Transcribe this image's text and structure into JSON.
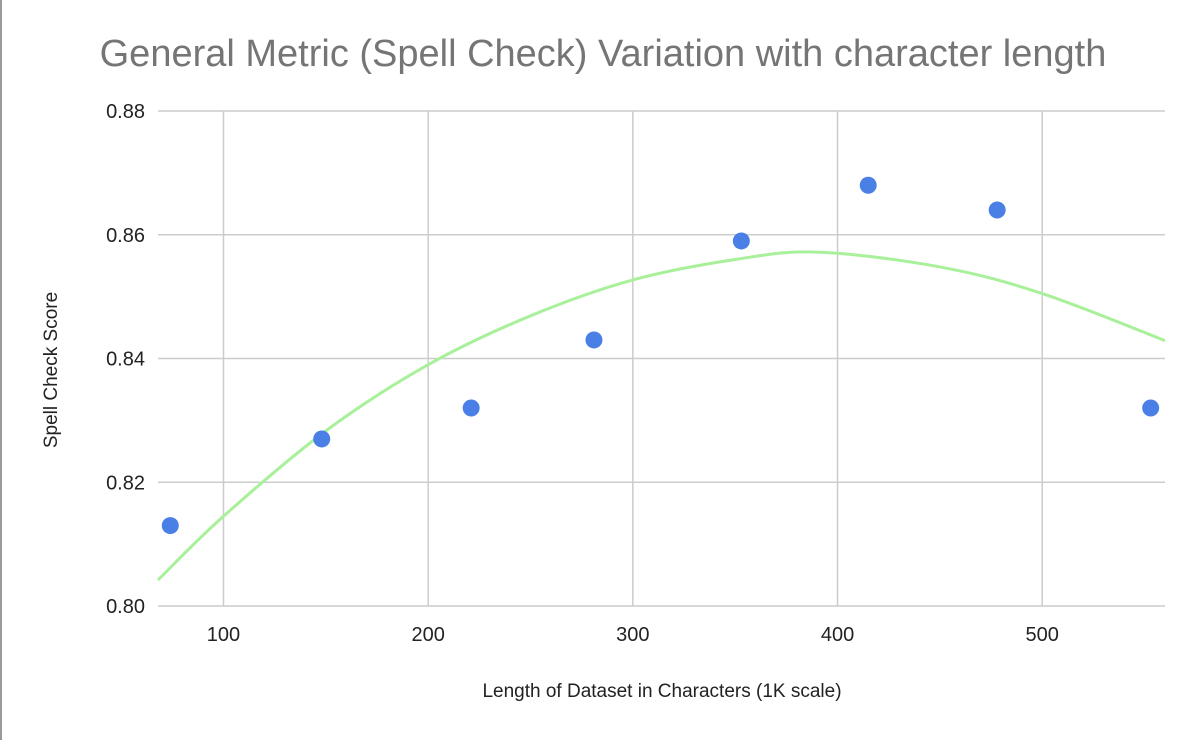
{
  "chart_data": {
    "type": "scatter",
    "title": "General Metric (Spell Check) Variation with character length",
    "xlabel": "Length of Dataset in Characters (1K scale)",
    "ylabel": "Spell Check Score",
    "xlim": [
      68,
      560
    ],
    "ylim": [
      0.8,
      0.88
    ],
    "x_ticks": [
      100,
      200,
      300,
      400,
      500
    ],
    "x_tick_labels": [
      "100",
      "200",
      "300",
      "400",
      "500"
    ],
    "y_ticks": [
      0.8,
      0.82,
      0.84,
      0.86,
      0.88
    ],
    "y_tick_labels": [
      "0.80",
      "0.82",
      "0.84",
      "0.86",
      "0.88"
    ],
    "grid": true,
    "legend": "none",
    "series": [
      {
        "color": "#4a7fe6",
        "points": [
          {
            "x": 74,
            "y": 0.813
          },
          {
            "x": 148,
            "y": 0.827
          },
          {
            "x": 221,
            "y": 0.832
          },
          {
            "x": 281,
            "y": 0.843
          },
          {
            "x": 353,
            "y": 0.859
          },
          {
            "x": 415,
            "y": 0.868
          },
          {
            "x": 478,
            "y": 0.864
          },
          {
            "x": 553,
            "y": 0.832
          }
        ]
      }
    ],
    "trendline": {
      "type": "polynomial",
      "degree": 2,
      "color": "#a8f09a",
      "points": [
        {
          "x": 68,
          "y": 0.8042
        },
        {
          "x": 100,
          "y": 0.8145
        },
        {
          "x": 150,
          "y": 0.8283
        },
        {
          "x": 200,
          "y": 0.839
        },
        {
          "x": 250,
          "y": 0.8469
        },
        {
          "x": 300,
          "y": 0.8527
        },
        {
          "x": 350,
          "y": 0.856
        },
        {
          "x": 390,
          "y": 0.8572
        },
        {
          "x": 450,
          "y": 0.8548
        },
        {
          "x": 500,
          "y": 0.8505
        },
        {
          "x": 560,
          "y": 0.8429
        }
      ]
    }
  }
}
